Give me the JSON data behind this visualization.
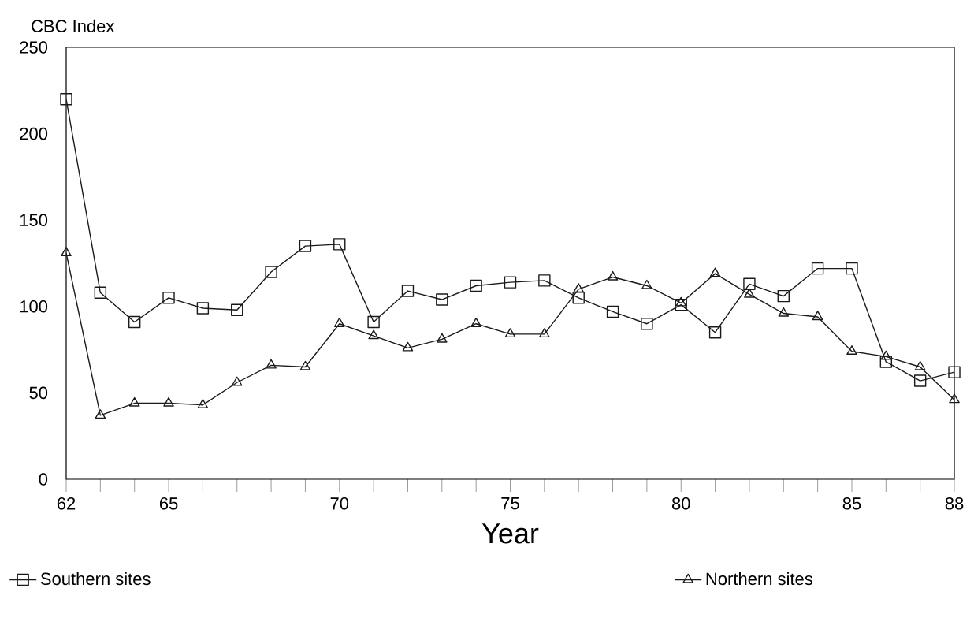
{
  "chart_data": {
    "type": "line",
    "ylabel": "CBC Index",
    "xlabel": "Year",
    "x": [
      62,
      63,
      64,
      65,
      66,
      67,
      68,
      69,
      70,
      71,
      72,
      73,
      74,
      75,
      76,
      77,
      78,
      79,
      80,
      81,
      82,
      83,
      84,
      85,
      86,
      87,
      88
    ],
    "series": [
      {
        "name": "Southern sites",
        "color": "#1a1a1a",
        "marker": "square",
        "values": [
          220,
          108,
          91,
          105,
          99,
          98,
          120,
          135,
          136,
          91,
          109,
          104,
          112,
          114,
          115,
          105,
          97,
          90,
          101,
          85,
          113,
          106,
          122,
          122,
          68,
          57,
          62
        ]
      },
      {
        "name": "Northern sites",
        "color": "#1a1a1a",
        "marker": "triangle",
        "values": [
          131,
          37,
          44,
          44,
          43,
          56,
          66,
          65,
          90,
          83,
          76,
          81,
          90,
          84,
          84,
          110,
          117,
          112,
          102,
          119,
          107,
          96,
          94,
          74,
          71,
          65,
          46
        ]
      }
    ],
    "xlim": [
      62,
      88
    ],
    "ylim": [
      0,
      250
    ],
    "xticks": [
      62,
      {
        "value": 63,
        "label": null
      },
      {
        "value": 64,
        "label": null
      },
      65,
      {
        "value": 66,
        "label": null
      },
      {
        "value": 67,
        "label": null
      },
      {
        "value": 68,
        "label": null
      },
      {
        "value": 69,
        "label": null
      },
      70,
      {
        "value": 71,
        "label": null
      },
      {
        "value": 72,
        "label": null
      },
      {
        "value": 73,
        "label": null
      },
      {
        "value": 74,
        "label": null
      },
      75,
      {
        "value": 76,
        "label": null
      },
      {
        "value": 77,
        "label": null
      },
      {
        "value": 78,
        "label": null
      },
      {
        "value": 79,
        "label": null
      },
      80,
      {
        "value": 81,
        "label": null
      },
      {
        "value": 82,
        "label": null
      },
      {
        "value": 83,
        "label": null
      },
      {
        "value": 84,
        "label": null
      },
      85,
      {
        "value": 86,
        "label": null
      },
      {
        "value": 87,
        "label": null
      },
      88
    ],
    "yticks": [
      0,
      50,
      100,
      150,
      200,
      250
    ],
    "grid": false,
    "legend": "bottom",
    "line_style": "solid"
  }
}
